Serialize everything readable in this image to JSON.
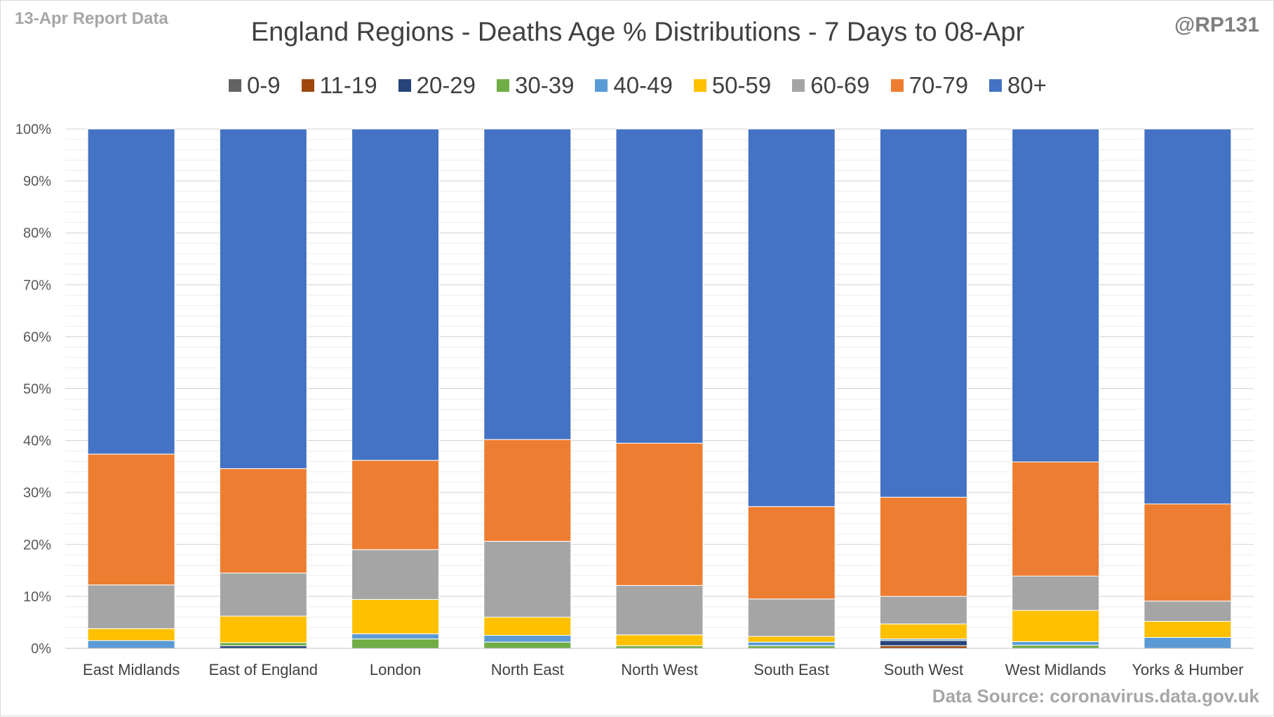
{
  "header": {
    "report_date": "13-Apr Report Data",
    "author": "@RP131",
    "source": "Data Source: coronavirus.data.gov.uk"
  },
  "chart_data": {
    "type": "bar",
    "stacked": true,
    "title": "England Regions - Deaths Age % Distributions - 7 Days to 08-Apr",
    "xlabel": "",
    "ylabel": "",
    "ylim": [
      0,
      100
    ],
    "yticks": [
      "0%",
      "10%",
      "20%",
      "30%",
      "40%",
      "50%",
      "60%",
      "70%",
      "80%",
      "90%",
      "100%"
    ],
    "grid": true,
    "legend_position": "top",
    "categories": [
      "East Midlands",
      "East of England",
      "London",
      "North East",
      "North West",
      "South East",
      "South West",
      "West Midlands",
      "Yorks & Humber"
    ],
    "series": [
      {
        "name": "0-9",
        "color": "#636363",
        "values": [
          0,
          0,
          0,
          0,
          0,
          0,
          0,
          0,
          0
        ]
      },
      {
        "name": "11-19",
        "color": "#9e480e",
        "values": [
          0,
          0,
          0,
          0,
          0,
          0,
          0.5,
          0,
          0
        ]
      },
      {
        "name": "20-29",
        "color": "#264478",
        "values": [
          0,
          0.5,
          0,
          0,
          0,
          0,
          1.0,
          0,
          0
        ]
      },
      {
        "name": "30-39",
        "color": "#70ad47",
        "values": [
          0,
          0.6,
          1.8,
          1.2,
          0.5,
          0.5,
          0,
          0.6,
          0
        ]
      },
      {
        "name": "40-49",
        "color": "#5b9bd5",
        "values": [
          1.5,
          0,
          1.0,
          1.3,
          0,
          0.7,
          0.3,
          0.7,
          2.1
        ]
      },
      {
        "name": "50-59",
        "color": "#ffc000",
        "values": [
          2.3,
          5.1,
          6.6,
          3.5,
          2.1,
          1.1,
          2.9,
          6.0,
          3.1
        ]
      },
      {
        "name": "60-69",
        "color": "#a5a5a5",
        "values": [
          8.4,
          8.3,
          9.6,
          14.6,
          9.5,
          7.2,
          5.3,
          6.6,
          3.9
        ]
      },
      {
        "name": "70-79",
        "color": "#ed7d31",
        "values": [
          25.2,
          20.1,
          17.2,
          19.6,
          27.4,
          17.8,
          19.1,
          22.0,
          18.7
        ]
      },
      {
        "name": "80+",
        "color": "#4472c4",
        "values": [
          62.6,
          65.4,
          63.8,
          59.8,
          60.5,
          72.7,
          70.9,
          64.1,
          72.2
        ]
      }
    ]
  }
}
